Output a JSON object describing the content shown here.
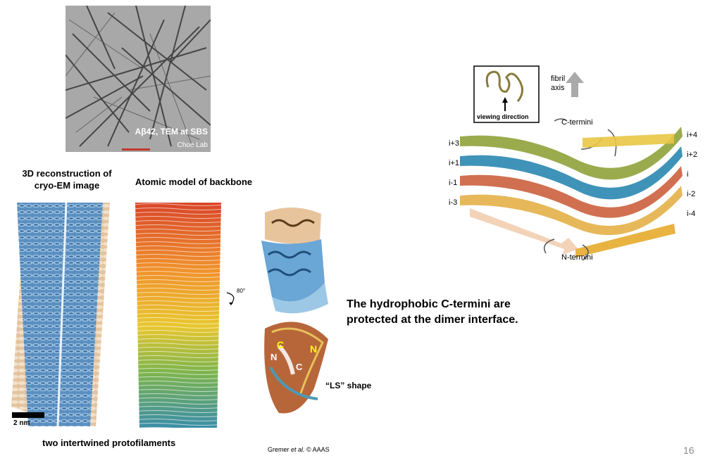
{
  "tem": {
    "caption": "Aβ42, TEM at SBS",
    "credit": "Choe Lab"
  },
  "labels": {
    "cryo_title": "3D reconstruction of cryo-EM image",
    "backbone_title": "Atomic model of backbone",
    "protofilaments": "two intertwined protofilaments",
    "scale_bar": "2 nm",
    "rotation": "80°",
    "ls_shape": "“LS” shape",
    "c_label": "C",
    "n_label": "N",
    "c_label2": "C",
    "n_label2": "N"
  },
  "sheet_diagram": {
    "viewing_direction": "viewing direction",
    "fibril_axis_line1": "fibril",
    "fibril_axis_line2": "axis",
    "c_termini": "C-termini",
    "n_termini": "N-termini",
    "left_labels": [
      "i+3",
      "i+1",
      "i-1",
      "i-3"
    ],
    "right_labels": [
      "i+4",
      "i+2",
      "i",
      "i-2",
      "i-4"
    ]
  },
  "statement": {
    "line1": "The hydrophobic C-termini are",
    "line2": "protected at the dimer interface."
  },
  "citation": {
    "author": "Gremer ",
    "etal": "et al.",
    "rest": " © AAAS"
  },
  "slide_number": "16",
  "colors": {
    "cryo_blue": "#5b8fc0",
    "cryo_tan": "#e3c4a0",
    "accent_yellow": "#ffff00"
  }
}
